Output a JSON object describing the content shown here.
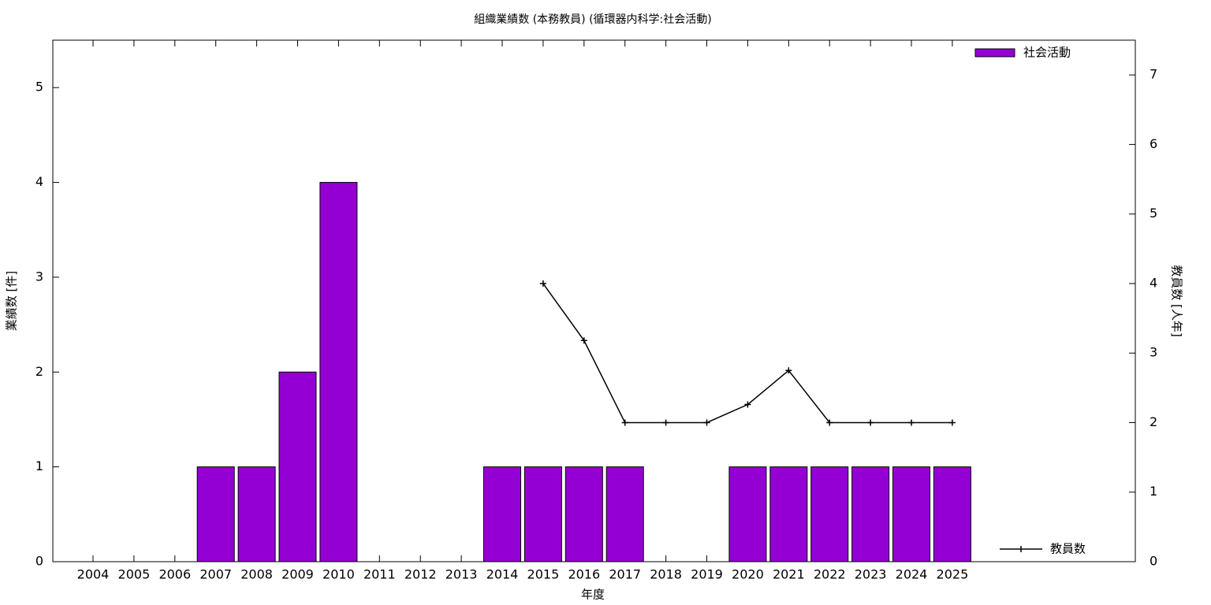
{
  "chart_data": {
    "type": "bar",
    "title": "組織業績数 (本務教員) (循環器内科学:社会活動)",
    "x_label": "年度",
    "y_label": "業績数 [件]",
    "y2_label": "教員数 [人年]",
    "categories": [
      "2004",
      "2005",
      "2006",
      "2007",
      "2008",
      "2009",
      "2010",
      "2011",
      "2012",
      "2013",
      "2014",
      "2015",
      "2016",
      "2017",
      "2018",
      "2019",
      "2020",
      "2021",
      "2022",
      "2023",
      "2024",
      "2025"
    ],
    "series": [
      {
        "name": "社会活動",
        "type": "bar",
        "color": "#9400d3",
        "values": [
          0,
          0,
          0,
          1,
          1,
          2,
          4,
          0,
          0,
          0,
          1,
          1,
          1,
          1,
          0,
          0,
          1,
          1,
          1,
          1,
          1,
          1
        ]
      },
      {
        "name": "教員数",
        "type": "line",
        "axis": "y2",
        "color": "#000000",
        "values": [
          null,
          null,
          null,
          null,
          null,
          null,
          null,
          null,
          null,
          null,
          null,
          4,
          3.18,
          2,
          2,
          2,
          2.26,
          2.75,
          2,
          2,
          2,
          2
        ]
      }
    ],
    "ylim": [
      0,
      5.5
    ],
    "yticks": [
      0,
      1,
      2,
      3,
      4,
      5
    ],
    "y2lim": [
      0,
      7.5
    ],
    "y2ticks": [
      0,
      1,
      2,
      3,
      4,
      5,
      6,
      7
    ]
  }
}
